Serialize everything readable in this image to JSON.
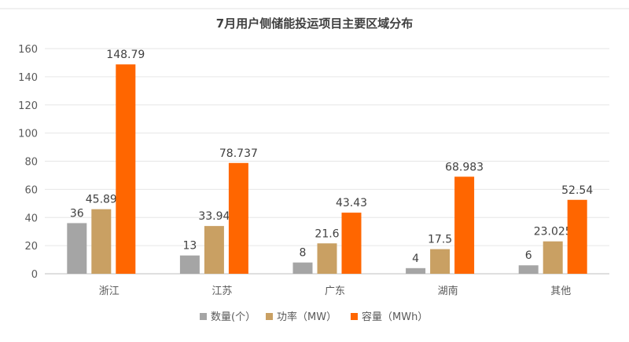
{
  "chart_data": {
    "type": "bar",
    "title": "7月用户侧储能投运项目主要区域分布",
    "categories": [
      "浙江",
      "江苏",
      "广东",
      "湖南",
      "其他"
    ],
    "series": [
      {
        "name": "数量(个）",
        "color": "#a5a5a5",
        "values": [
          36,
          13,
          8,
          4,
          6
        ],
        "labels": [
          "36",
          "13",
          "8",
          "4",
          "6"
        ]
      },
      {
        "name": "功率（MW）",
        "color": "#c9a063",
        "values": [
          45.89,
          33.94,
          21.6,
          17.5,
          23.025
        ],
        "labels": [
          "45.89",
          "33.94",
          "21.6",
          "17.5",
          "23.025"
        ]
      },
      {
        "name": "容量（MWh）",
        "color": "#ff6600",
        "values": [
          148.79,
          78.737,
          43.43,
          68.983,
          52.54
        ],
        "labels": [
          "148.79",
          "78.737",
          "43.43",
          "68.983",
          "52.54"
        ]
      }
    ],
    "ylim": [
      0,
      160
    ],
    "yticks": [
      "0",
      "20",
      "40",
      "60",
      "80",
      "100",
      "120",
      "140",
      "160"
    ],
    "grid": true,
    "legend": "bottom",
    "xlabel": "",
    "ylabel": ""
  }
}
